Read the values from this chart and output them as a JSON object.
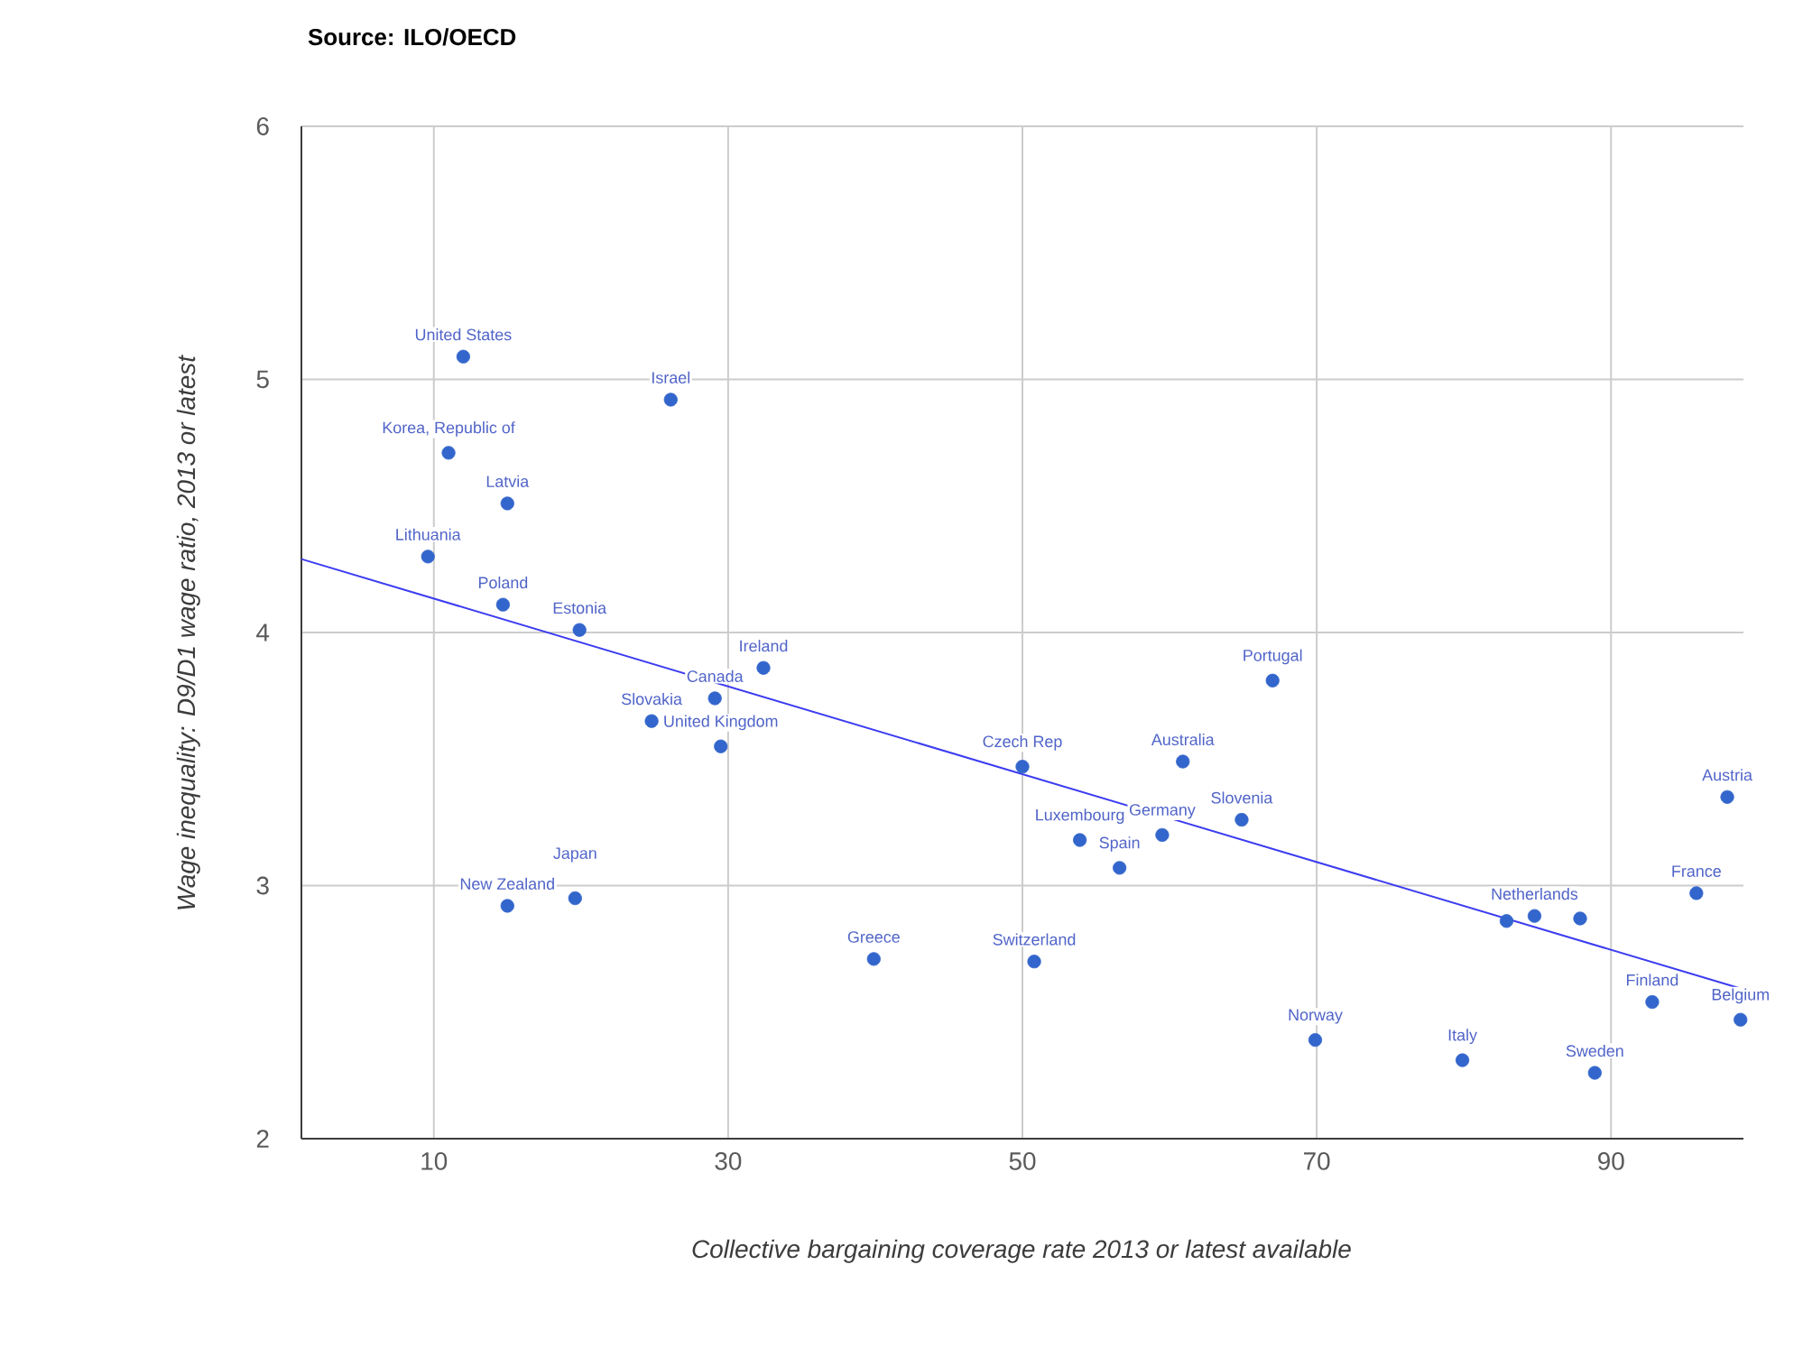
{
  "chart_data": {
    "type": "scatter",
    "title": "Source: ILO/OECD",
    "xlabel": "Collective bargaining coverage rate 2013 or latest available",
    "ylabel": "Wage inequality: D9/D1 wage ratio, 2013 or latest",
    "xlim": [
      1,
      99
    ],
    "ylim": [
      2,
      6
    ],
    "xticks": [
      10,
      30,
      50,
      70,
      90
    ],
    "yticks": [
      2,
      3,
      4,
      5,
      6
    ],
    "grid": true,
    "series": [
      {
        "type": "scatter",
        "marker": "circle",
        "color": "#3366cc",
        "x": [
          12,
          26.1,
          11,
          15,
          9.6,
          14.7,
          19.9,
          32.4,
          29.1,
          24.8,
          29.5,
          15,
          19.6,
          39.9,
          50,
          67,
          60.9,
          53.9,
          59.5,
          56.6,
          64.9,
          50.8,
          69.9,
          79.9,
          88.9,
          92.8,
          98.8,
          97.9,
          95.8,
          82.9,
          84.8,
          87.9
        ],
        "values": [
          5.09,
          4.92,
          4.71,
          4.51,
          4.3,
          4.11,
          4.01,
          3.86,
          3.74,
          3.65,
          3.55,
          2.92,
          2.95,
          2.71,
          3.47,
          3.81,
          3.49,
          3.18,
          3.2,
          3.07,
          3.26,
          2.7,
          2.39,
          2.31,
          2.26,
          2.54,
          2.47,
          3.35,
          2.97,
          2.86,
          2.88,
          2.87
        ]
      },
      {
        "type": "line",
        "color": "#3c3cf0",
        "x": [
          1,
          99
        ],
        "values": [
          4.29,
          2.59
        ]
      }
    ],
    "annotations": [
      {
        "text": "United States",
        "x": 12,
        "y": 5.09
      },
      {
        "text": "Israel",
        "x": 26.1,
        "y": 4.92
      },
      {
        "text": "Korea, Republic of",
        "x": 11,
        "y": 4.71
      },
      {
        "text": "Latvia",
        "x": 15,
        "y": 4.51
      },
      {
        "text": "Lithuania",
        "x": 9.6,
        "y": 4.3
      },
      {
        "text": "Poland",
        "x": 14.7,
        "y": 4.11
      },
      {
        "text": "Estonia",
        "x": 19.9,
        "y": 4.01
      },
      {
        "text": "Ireland",
        "x": 32.4,
        "y": 3.86
      },
      {
        "text": "Canada",
        "x": 29.1,
        "y": 3.74
      },
      {
        "text": "Slovakia",
        "x": 24.8,
        "y": 3.65
      },
      {
        "text": "United Kingdom",
        "x": 29.5,
        "y": 3.55
      },
      {
        "text": "New Zealand",
        "x": 15,
        "y": 2.92
      },
      {
        "text": "Japan",
        "x": 19.6,
        "y": 2.95
      },
      {
        "text": "Greece",
        "x": 39.9,
        "y": 2.71
      },
      {
        "text": "Czech Rep",
        "x": 50,
        "y": 3.47
      },
      {
        "text": "Portugal",
        "x": 67,
        "y": 3.81
      },
      {
        "text": "Australia",
        "x": 60.9,
        "y": 3.49
      },
      {
        "text": "Luxembourg",
        "x": 53.9,
        "y": 3.18
      },
      {
        "text": "Germany",
        "x": 59.5,
        "y": 3.2
      },
      {
        "text": "Spain",
        "x": 56.6,
        "y": 3.07
      },
      {
        "text": "Slovenia",
        "x": 64.9,
        "y": 3.26
      },
      {
        "text": "Switzerland",
        "x": 50.8,
        "y": 2.7
      },
      {
        "text": "Norway",
        "x": 69.9,
        "y": 2.39
      },
      {
        "text": "Italy",
        "x": 79.9,
        "y": 2.31
      },
      {
        "text": "Sweden",
        "x": 88.9,
        "y": 2.26
      },
      {
        "text": "Finland",
        "x": 92.8,
        "y": 2.54
      },
      {
        "text": "Belgium",
        "x": 98.8,
        "y": 2.47
      },
      {
        "text": "Austria",
        "x": 97.9,
        "y": 3.35
      },
      {
        "text": "France",
        "x": 95.8,
        "y": 2.97
      },
      {
        "text": "Netherlands",
        "x": 84.8,
        "y": 2.88
      }
    ]
  }
}
